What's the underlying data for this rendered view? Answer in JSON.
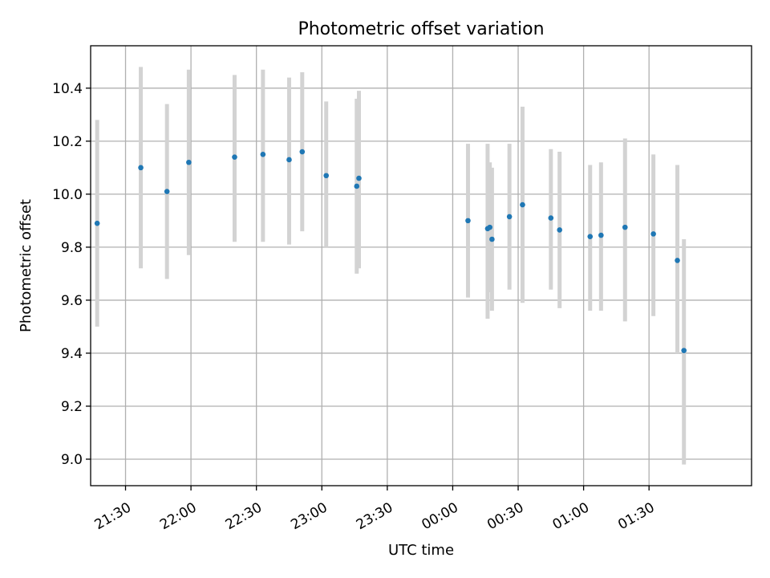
{
  "chart_data": {
    "type": "scatter",
    "title": "Photometric offset variation",
    "xlabel": "UTC time",
    "ylabel": "Photometric offset",
    "x_type": "time",
    "xlim": [
      "21:14",
      "02:17"
    ],
    "ylim": [
      8.9,
      10.56
    ],
    "x_ticks": [
      "21:30",
      "22:00",
      "22:30",
      "23:00",
      "23:30",
      "00:00",
      "00:30",
      "01:00",
      "01:30"
    ],
    "y_ticks": [
      9.0,
      9.2,
      9.4,
      9.6,
      9.8,
      10.0,
      10.2,
      10.4
    ],
    "y_tick_labels": [
      "9.0",
      "9.2",
      "9.4",
      "9.6",
      "9.8",
      "10.0",
      "10.2",
      "10.4"
    ],
    "grid": true,
    "marker_color": "#1f77b4",
    "errorbar_color": "#d3d3d3",
    "points": [
      {
        "time": "21:17",
        "y": 9.89,
        "ylow": 9.5,
        "yhigh": 10.28
      },
      {
        "time": "21:37",
        "y": 10.1,
        "ylow": 9.72,
        "yhigh": 10.48
      },
      {
        "time": "21:49",
        "y": 10.01,
        "ylow": 9.68,
        "yhigh": 10.34
      },
      {
        "time": "21:59",
        "y": 10.12,
        "ylow": 9.77,
        "yhigh": 10.47
      },
      {
        "time": "22:20",
        "y": 10.14,
        "ylow": 9.82,
        "yhigh": 10.45
      },
      {
        "time": "22:33",
        "y": 10.15,
        "ylow": 9.82,
        "yhigh": 10.47
      },
      {
        "time": "22:45",
        "y": 10.13,
        "ylow": 9.81,
        "yhigh": 10.44
      },
      {
        "time": "22:51",
        "y": 10.16,
        "ylow": 9.86,
        "yhigh": 10.46
      },
      {
        "time": "23:02",
        "y": 10.07,
        "ylow": 9.8,
        "yhigh": 10.35
      },
      {
        "time": "23:16",
        "y": 10.03,
        "ylow": 9.7,
        "yhigh": 10.36
      },
      {
        "time": "23:17",
        "y": 10.06,
        "ylow": 9.72,
        "yhigh": 10.39
      },
      {
        "time": "00:07",
        "y": 9.9,
        "ylow": 9.61,
        "yhigh": 10.19
      },
      {
        "time": "00:16",
        "y": 9.87,
        "ylow": 9.53,
        "yhigh": 10.19
      },
      {
        "time": "00:17",
        "y": 9.875,
        "ylow": 9.63,
        "yhigh": 10.12
      },
      {
        "time": "00:18",
        "y": 9.83,
        "ylow": 9.56,
        "yhigh": 10.1
      },
      {
        "time": "00:26",
        "y": 9.915,
        "ylow": 9.64,
        "yhigh": 10.19
      },
      {
        "time": "00:32",
        "y": 9.96,
        "ylow": 9.59,
        "yhigh": 10.33
      },
      {
        "time": "00:45",
        "y": 9.91,
        "ylow": 9.64,
        "yhigh": 10.17
      },
      {
        "time": "00:49",
        "y": 9.865,
        "ylow": 9.57,
        "yhigh": 10.16
      },
      {
        "time": "01:03",
        "y": 9.84,
        "ylow": 9.56,
        "yhigh": 10.11
      },
      {
        "time": "01:08",
        "y": 9.845,
        "ylow": 9.56,
        "yhigh": 10.12
      },
      {
        "time": "01:19",
        "y": 9.875,
        "ylow": 9.52,
        "yhigh": 10.21
      },
      {
        "time": "01:32",
        "y": 9.85,
        "ylow": 9.54,
        "yhigh": 10.15
      },
      {
        "time": "01:43",
        "y": 9.75,
        "ylow": 9.4,
        "yhigh": 10.11
      },
      {
        "time": "01:46",
        "y": 9.41,
        "ylow": 8.98,
        "yhigh": 9.83
      }
    ]
  }
}
